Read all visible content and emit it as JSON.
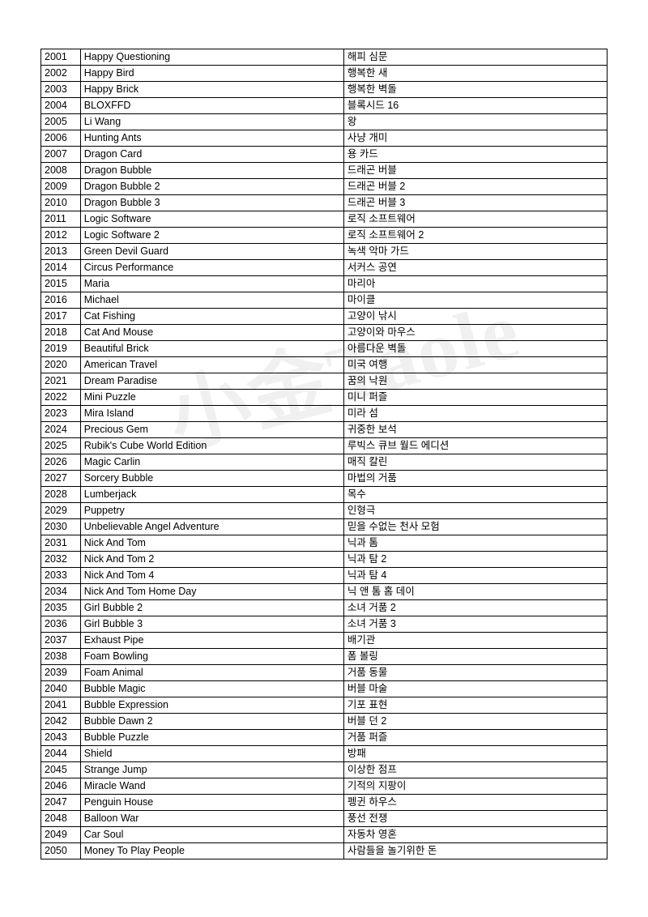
{
  "watermark_text": "小金Taole",
  "table": {
    "columns": [
      "id",
      "english",
      "korean"
    ],
    "rows": [
      {
        "id": "2001",
        "english": "Happy Questioning",
        "korean": "해피 심문"
      },
      {
        "id": "2002",
        "english": "Happy Bird",
        "korean": "행복한 새"
      },
      {
        "id": "2003",
        "english": "Happy Brick",
        "korean": "행복한 벽돌"
      },
      {
        "id": "2004",
        "english": "BLOXFFD",
        "korean": "블록시드 16"
      },
      {
        "id": "2005",
        "english": "Li Wang",
        "korean": "왕"
      },
      {
        "id": "2006",
        "english": "Hunting Ants",
        "korean": "사냥 개미"
      },
      {
        "id": "2007",
        "english": "Dragon Card",
        "korean": "용 카드"
      },
      {
        "id": "2008",
        "english": "Dragon Bubble",
        "korean": "드래곤 버블"
      },
      {
        "id": "2009",
        "english": "Dragon Bubble 2",
        "korean": "드래곤 버블 2"
      },
      {
        "id": "2010",
        "english": "Dragon Bubble 3",
        "korean": "드래곤 버블 3"
      },
      {
        "id": "2011",
        "english": "Logic Software",
        "korean": "로직 소프트웨어"
      },
      {
        "id": "2012",
        "english": "Logic Software 2",
        "korean": "로직 소프트웨어 2"
      },
      {
        "id": "2013",
        "english": "Green Devil Guard",
        "korean": "녹색 악마 가드"
      },
      {
        "id": "2014",
        "english": "Circus Performance",
        "korean": "서커스 공연"
      },
      {
        "id": "2015",
        "english": "Maria",
        "korean": "마리아"
      },
      {
        "id": "2016",
        "english": "Michael",
        "korean": "마이클"
      },
      {
        "id": "2017",
        "english": "Cat Fishing",
        "korean": "고양이 낚시"
      },
      {
        "id": "2018",
        "english": "Cat And Mouse",
        "korean": "고양이와 마우스"
      },
      {
        "id": "2019",
        "english": "Beautiful Brick",
        "korean": "아름다운 벽돌"
      },
      {
        "id": "2020",
        "english": "American Travel",
        "korean": "미국 여행"
      },
      {
        "id": "2021",
        "english": "Dream Paradise",
        "korean": "꿈의 낙원"
      },
      {
        "id": "2022",
        "english": "Mini Puzzle",
        "korean": "미니 퍼즐"
      },
      {
        "id": "2023",
        "english": "Mira Island",
        "korean": "미라 섬"
      },
      {
        "id": "2024",
        "english": "Precious Gem",
        "korean": "귀중한 보석"
      },
      {
        "id": "2025",
        "english": "Rubik's Cube World Edition",
        "korean": "루빅스 큐브 월드 에디션"
      },
      {
        "id": "2026",
        "english": "Magic Carlin",
        "korean": "매직 칼린"
      },
      {
        "id": "2027",
        "english": "Sorcery Bubble",
        "korean": "마법의 거품"
      },
      {
        "id": "2028",
        "english": "Lumberjack",
        "korean": "목수"
      },
      {
        "id": "2029",
        "english": "Puppetry",
        "korean": "인형극"
      },
      {
        "id": "2030",
        "english": "Unbelievable Angel Adventure",
        "korean": "믿을 수없는 천사 모험"
      },
      {
        "id": "2031",
        "english": "Nick And Tom",
        "korean": "닉과 톰"
      },
      {
        "id": "2032",
        "english": "Nick And Tom 2",
        "korean": "닉과 탐 2"
      },
      {
        "id": "2033",
        "english": "Nick And Tom 4",
        "korean": "닉과 탐 4"
      },
      {
        "id": "2034",
        "english": "Nick And Tom Home Day",
        "korean": "닉 앤 톰 홈 데이"
      },
      {
        "id": "2035",
        "english": "Girl Bubble 2",
        "korean": "소녀 거품 2"
      },
      {
        "id": "2036",
        "english": "Girl Bubble 3",
        "korean": "소녀 거품 3"
      },
      {
        "id": "2037",
        "english": "Exhaust Pipe",
        "korean": "배기관"
      },
      {
        "id": "2038",
        "english": "Foam Bowling",
        "korean": "폼 볼링"
      },
      {
        "id": "2039",
        "english": "Foam Animal",
        "korean": "거품 동물"
      },
      {
        "id": "2040",
        "english": "Bubble Magic",
        "korean": "버블 마술"
      },
      {
        "id": "2041",
        "english": "Bubble Expression",
        "korean": "기포 표현"
      },
      {
        "id": "2042",
        "english": "Bubble Dawn 2",
        "korean": "버블 던 2"
      },
      {
        "id": "2043",
        "english": "Bubble Puzzle",
        "korean": "거품 퍼즐"
      },
      {
        "id": "2044",
        "english": "Shield",
        "korean": "방패"
      },
      {
        "id": "2045",
        "english": "Strange Jump",
        "korean": "이상한 점프"
      },
      {
        "id": "2046",
        "english": "Miracle Wand",
        "korean": "기적의 지팡이"
      },
      {
        "id": "2047",
        "english": "Penguin House",
        "korean": "펭귄 하우스"
      },
      {
        "id": "2048",
        "english": "Balloon War",
        "korean": "풍선 전쟁"
      },
      {
        "id": "2049",
        "english": "Car Soul",
        "korean": "자동차 영혼"
      },
      {
        "id": "2050",
        "english": "Money To Play People",
        "korean": "사람들을 놀기위한 돈"
      }
    ]
  }
}
